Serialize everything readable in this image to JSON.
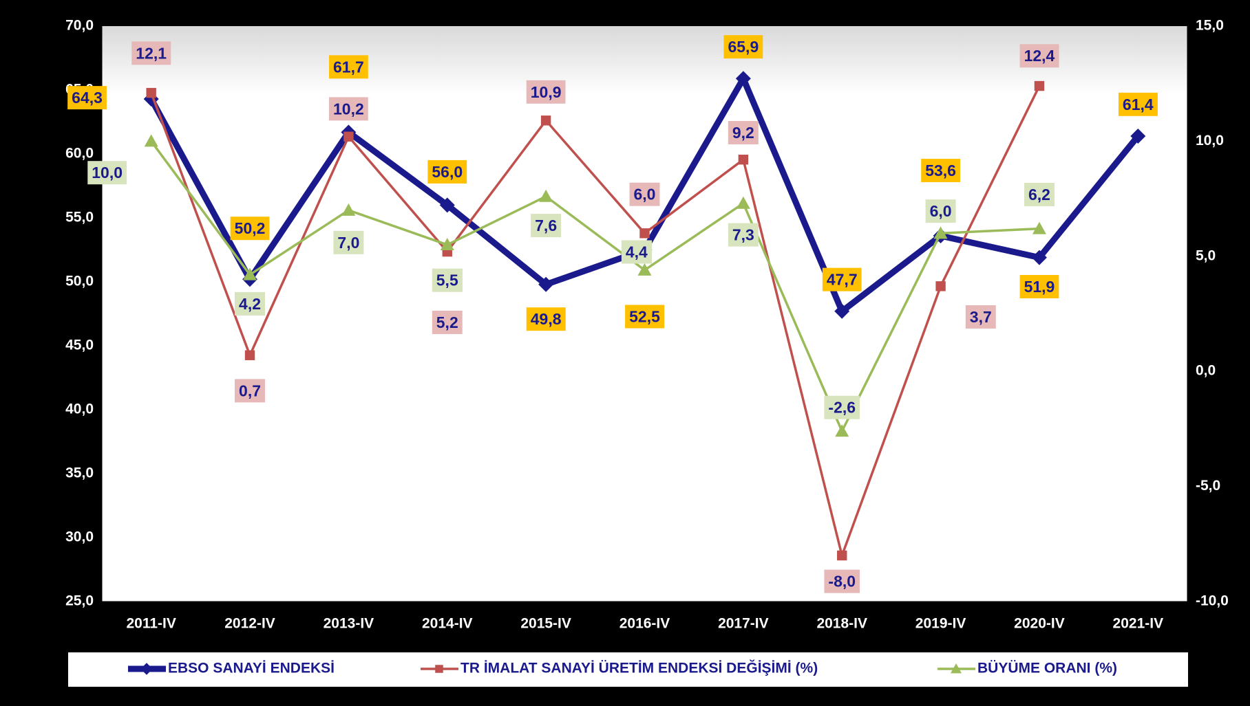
{
  "chart_data": {
    "type": "line",
    "categories": [
      "2011-IV",
      "2012-IV",
      "2013-IV",
      "2014-IV",
      "2015-IV",
      "2016-IV",
      "2017-IV",
      "2018-IV",
      "2019-IV",
      "2020-IV",
      "2021-IV"
    ],
    "ylim": [
      25,
      70
    ],
    "yticks": [
      {
        "value": 25,
        "label": "25,0"
      },
      {
        "value": 30,
        "label": "30,0"
      },
      {
        "value": 35,
        "label": "35,0"
      },
      {
        "value": 40,
        "label": "40,0"
      },
      {
        "value": 45,
        "label": "45,0"
      },
      {
        "value": 50,
        "label": "50,0"
      },
      {
        "value": 55,
        "label": "55,0"
      },
      {
        "value": 60,
        "label": "60,0"
      },
      {
        "value": 65,
        "label": "65,0"
      },
      {
        "value": 70,
        "label": "70,0"
      }
    ],
    "y2lim": [
      -10,
      15
    ],
    "y2ticks": [
      {
        "value": -10,
        "label": "-10,0"
      },
      {
        "value": -5,
        "label": "-5,0"
      },
      {
        "value": 0,
        "label": "0,0"
      },
      {
        "value": 5,
        "label": "5,0"
      },
      {
        "value": 10,
        "label": "10,0"
      },
      {
        "value": 15,
        "label": "15,0"
      }
    ],
    "series": [
      {
        "name": "EBSO SANAYİ ENDEKSİ",
        "color": "#1a1a8c",
        "marker": "diamond",
        "values": [
          64.3,
          50.2,
          61.7,
          56.0,
          49.8,
          52.5,
          65.9,
          47.7,
          53.6,
          51.9,
          61.4
        ],
        "value_labels": [
          "64,3",
          "50,2",
          "61,7",
          "56,0",
          "49,8",
          "52,5",
          "65,9",
          "47,7",
          "53,6",
          "51,9",
          "61,4"
        ]
      },
      {
        "name": "TR İMALAT SANAYİ ÜRETİM ENDEKSİ DEĞİŞİMİ (%)",
        "color": "#c0504d",
        "marker": "square",
        "axis": "y2",
        "values": [
          12.1,
          0.7,
          10.2,
          5.2,
          10.9,
          6.0,
          9.2,
          -8.0,
          3.7,
          12.4,
          null
        ],
        "value_labels": [
          "12,1",
          "0,7",
          "10,2",
          "5,2",
          "10,9",
          "6,0",
          "9,2",
          "-8,0",
          "3,7",
          "12,4",
          null
        ]
      },
      {
        "name": "BÜYÜME ORANI (%)",
        "color": "#9bbb59",
        "marker": "triangle",
        "axis": "y2",
        "values": [
          10.0,
          4.2,
          7.0,
          5.5,
          7.6,
          4.4,
          7.3,
          -2.6,
          6.0,
          6.2,
          null
        ],
        "value_labels": [
          "10,0",
          "4,2",
          "7,0",
          "5,5",
          "7,6",
          "4,4",
          "7,3",
          "-2,6",
          "6,0",
          "6,2",
          null
        ]
      }
    ]
  }
}
